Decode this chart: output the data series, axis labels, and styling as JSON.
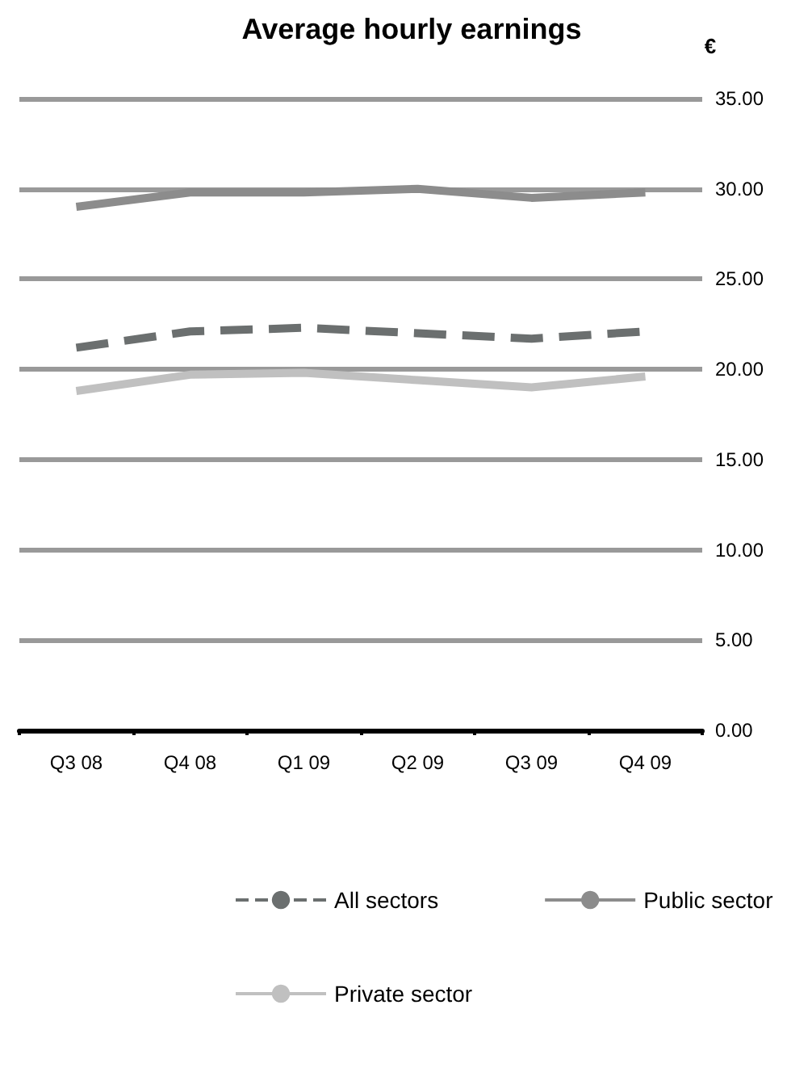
{
  "chart_data": {
    "type": "line",
    "title": "Average hourly earnings",
    "ylabel": "€",
    "categories": [
      "Q3 08",
      "Q4 08",
      "Q1 09",
      "Q2 09",
      "Q3 09",
      "Q4 09"
    ],
    "series": [
      {
        "name": "All sectors",
        "color": "#6b6f6f",
        "line_style": "dashed",
        "values": [
          21.2,
          22.1,
          22.3,
          22.0,
          21.7,
          22.1
        ]
      },
      {
        "name": "Private sector",
        "color": "#c0c0c0",
        "line_style": "solid",
        "values": [
          18.8,
          19.7,
          19.8,
          19.4,
          19.0,
          19.6
        ]
      },
      {
        "name": "Public sector",
        "color": "#8c8c8c",
        "line_style": "solid",
        "values": [
          29.0,
          29.8,
          29.8,
          30.0,
          29.5,
          29.8
        ]
      }
    ],
    "ylim": [
      0,
      35
    ],
    "yticks": [
      {
        "value": 0,
        "label": "0.00"
      },
      {
        "value": 5,
        "label": "5.00"
      },
      {
        "value": 10,
        "label": "10.00"
      },
      {
        "value": 15,
        "label": "15.00"
      },
      {
        "value": 20,
        "label": "20.00"
      },
      {
        "value": 25,
        "label": "25.00"
      },
      {
        "value": 30,
        "label": "30.00"
      },
      {
        "value": 35,
        "label": "35.00"
      }
    ],
    "grid": "y",
    "legend": "bottom",
    "marker": "none"
  }
}
